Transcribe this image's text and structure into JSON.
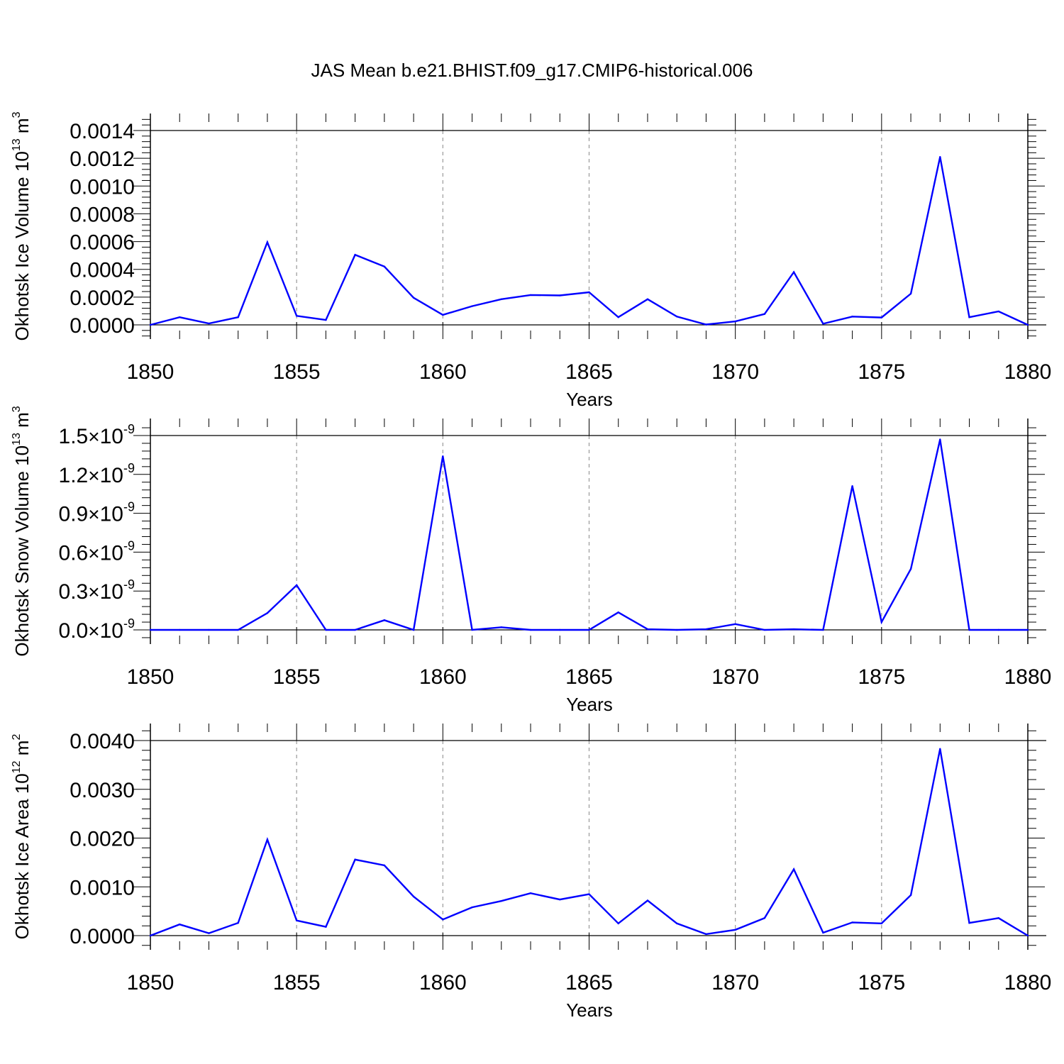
{
  "title": "JAS Mean b.e21.BHIST.f09_g17.CMIP6-historical.006",
  "colors": {
    "line": "#0000ff",
    "axis": "#000000",
    "grid": "#999999",
    "background": "#ffffff"
  },
  "chart_data": [
    {
      "type": "line",
      "ylabel": "Okhotsk Ice Volume 10",
      "ylabel_sup": "13",
      "ylabel_unit": "m",
      "ylabel_unit_sup": "3",
      "xlabel": "Years",
      "xlim": [
        1850,
        1880
      ],
      "ylim": [
        0,
        0.00142
      ],
      "grid": "vertical dashed",
      "x_ticks": [
        "1850",
        "1855",
        "1860",
        "1865",
        "1870",
        "1875",
        "1880"
      ],
      "y_ticks": [
        {
          "value": 0.0,
          "label": "0.0000"
        },
        {
          "value": 0.0002,
          "label": "0.0002"
        },
        {
          "value": 0.0004,
          "label": "0.0004"
        },
        {
          "value": 0.0006,
          "label": "0.0006"
        },
        {
          "value": 0.0008,
          "label": "0.0008"
        },
        {
          "value": 0.001,
          "label": "0.0010"
        },
        {
          "value": 0.0012,
          "label": "0.0012"
        },
        {
          "value": 0.0014,
          "label": "0.0014"
        }
      ],
      "x": [
        1850,
        1851,
        1852,
        1853,
        1854,
        1855,
        1856,
        1857,
        1858,
        1859,
        1860,
        1861,
        1862,
        1863,
        1864,
        1865,
        1866,
        1867,
        1868,
        1869,
        1870,
        1871,
        1872,
        1873,
        1874,
        1875,
        1876,
        1877,
        1878,
        1879,
        1880
      ],
      "values": [
        0.0,
        5.5e-05,
        1e-05,
        5.5e-05,
        0.000595,
        6.5e-05,
        3.5e-05,
        0.000505,
        0.00042,
        0.000195,
        7.2e-05,
        0.000135,
        0.000185,
        0.000215,
        0.000212,
        0.000235,
        5.5e-05,
        0.000185,
        6e-05,
        2.5e-06,
        2.5e-05,
        7.8e-05,
        0.00038,
        8e-06,
        6e-05,
        5.3e-05,
        0.000225,
        0.00121,
        5.5e-05,
        9.7e-05,
        0.0
      ]
    },
    {
      "type": "line",
      "ylabel": "Okhotsk Snow Volume 10",
      "ylabel_sup": "13",
      "ylabel_unit": "m",
      "ylabel_unit_sup": "3",
      "xlabel": "Years",
      "xlim": [
        1850,
        1880
      ],
      "ylim": [
        0,
        1.5e-09
      ],
      "grid": "vertical dashed",
      "x_ticks": [
        "1850",
        "1855",
        "1860",
        "1865",
        "1870",
        "1875",
        "1880"
      ],
      "y_ticks": [
        {
          "value": 0.0,
          "mantissa": "0.0",
          "times": "×",
          "base": "10",
          "exp": "-9"
        },
        {
          "value": 3e-10,
          "mantissa": "0.3",
          "times": "×",
          "base": "10",
          "exp": "-9"
        },
        {
          "value": 6e-10,
          "mantissa": "0.6",
          "times": "×",
          "base": "10",
          "exp": "-9"
        },
        {
          "value": 9e-10,
          "mantissa": "0.9",
          "times": "×",
          "base": "10",
          "exp": "-9"
        },
        {
          "value": 1.2e-09,
          "mantissa": "1.2",
          "times": "×",
          "base": "10",
          "exp": "-9"
        },
        {
          "value": 1.5e-09,
          "mantissa": "1.5",
          "times": "×",
          "base": "10",
          "exp": "-9"
        }
      ],
      "x": [
        1850,
        1851,
        1852,
        1853,
        1854,
        1855,
        1856,
        1857,
        1858,
        1859,
        1860,
        1861,
        1862,
        1863,
        1864,
        1865,
        1866,
        1867,
        1868,
        1869,
        1870,
        1871,
        1872,
        1873,
        1874,
        1875,
        1876,
        1877,
        1878,
        1879,
        1880
      ],
      "values": [
        0,
        0,
        0,
        0,
        1.3e-10,
        3.45e-10,
        0,
        0,
        7.5e-11,
        0,
        1.34e-09,
        0,
        2e-11,
        0,
        0,
        0,
        1.35e-10,
        5e-12,
        0,
        5e-12,
        4.5e-11,
        0,
        5e-12,
        0,
        1.11e-09,
        6e-11,
        4.7e-10,
        1.47e-09,
        0,
        0,
        0
      ]
    },
    {
      "type": "line",
      "ylabel": "Okhotsk Ice Area 10",
      "ylabel_sup": "12",
      "ylabel_unit": "m",
      "ylabel_unit_sup": "2",
      "xlabel": "Years",
      "xlim": [
        1850,
        1880
      ],
      "ylim": [
        0,
        0.0044
      ],
      "grid": "vertical dashed",
      "x_ticks": [
        "1850",
        "1855",
        "1860",
        "1865",
        "1870",
        "1875",
        "1880"
      ],
      "y_ticks": [
        {
          "value": 0.0,
          "label": "0.0000"
        },
        {
          "value": 0.001,
          "label": "0.0010"
        },
        {
          "value": 0.002,
          "label": "0.0020"
        },
        {
          "value": 0.003,
          "label": "0.0030"
        },
        {
          "value": 0.004,
          "label": "0.0040"
        }
      ],
      "x": [
        1850,
        1851,
        1852,
        1853,
        1854,
        1855,
        1856,
        1857,
        1858,
        1859,
        1860,
        1861,
        1862,
        1863,
        1864,
        1865,
        1866,
        1867,
        1868,
        1869,
        1870,
        1871,
        1872,
        1873,
        1874,
        1875,
        1876,
        1877,
        1878,
        1879,
        1880
      ],
      "values": [
        0.0,
        0.00023,
        5e-05,
        0.00026,
        0.00197,
        0.00031,
        0.00018,
        0.00156,
        0.00144,
        0.0008,
        0.00033,
        0.00058,
        0.00071,
        0.00087,
        0.00074,
        0.00085,
        0.00025,
        0.00072,
        0.00025,
        3e-05,
        0.00012,
        0.00036,
        0.00136,
        6e-05,
        0.00027,
        0.00025,
        0.00083,
        0.00383,
        0.00026,
        0.00036,
        0.0
      ]
    }
  ]
}
